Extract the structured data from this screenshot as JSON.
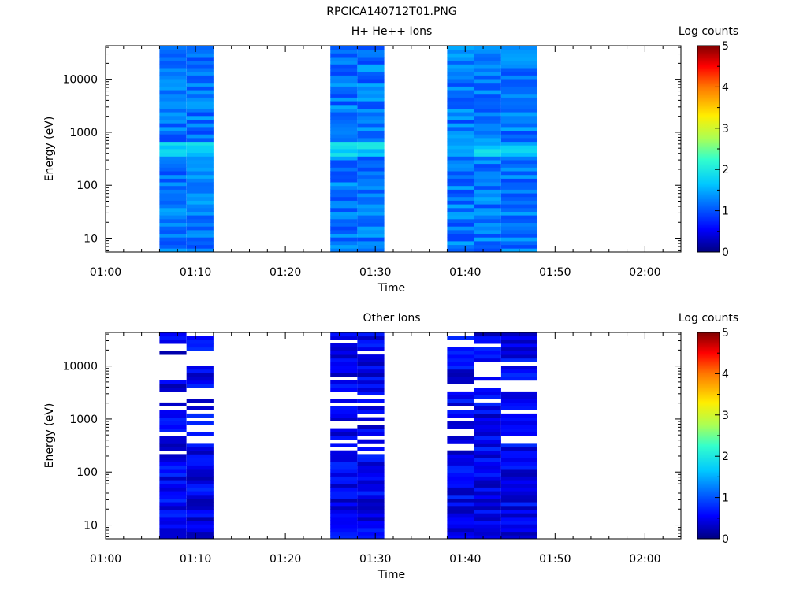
{
  "figure_title": "RPCICA140712T01.PNG",
  "chart_data": [
    {
      "type": "heatmap",
      "title": "H+ He++ Ions",
      "xlabel": "Time",
      "ylabel": "Energy (eV)",
      "x_ticks": [
        "01:00",
        "01:10",
        "01:20",
        "01:30",
        "01:40",
        "01:50",
        "02:00"
      ],
      "xlim": [
        "01:00",
        "02:04"
      ],
      "y_scale": "log",
      "ylim": [
        5.5,
        43000
      ],
      "y_ticks": [
        "10",
        "100",
        "1000",
        "10000"
      ],
      "colorbar": {
        "label": "Log counts",
        "range": [
          0,
          5
        ],
        "ticks": [
          "0",
          "1",
          "2",
          "3",
          "4",
          "5"
        ],
        "colormap": "rainbow"
      },
      "time_columns": [
        {
          "start": "01:06",
          "end": "01:09",
          "seed": 11
        },
        {
          "start": "01:09",
          "end": "01:12",
          "seed": 12
        },
        {
          "start": "01:25",
          "end": "01:28",
          "seed": 13
        },
        {
          "start": "01:28",
          "end": "01:31",
          "seed": 14
        },
        {
          "start": "01:38",
          "end": "01:41",
          "seed": 15
        },
        {
          "start": "01:41",
          "end": "01:44",
          "seed": 16
        },
        {
          "start": "01:44",
          "end": "01:48",
          "seed": 17
        }
      ],
      "typical_log_counts": [
        0.9,
        1.5
      ]
    },
    {
      "type": "heatmap",
      "title": "Other Ions",
      "xlabel": "Time",
      "ylabel": "Energy (eV)",
      "x_ticks": [
        "01:00",
        "01:10",
        "01:20",
        "01:30",
        "01:40",
        "01:50",
        "02:00"
      ],
      "xlim": [
        "01:00",
        "02:04"
      ],
      "y_scale": "log",
      "ylim": [
        5.5,
        43000
      ],
      "y_ticks": [
        "10",
        "100",
        "1000",
        "10000"
      ],
      "colorbar": {
        "label": "Log counts",
        "range": [
          0,
          5
        ],
        "ticks": [
          "0",
          "1",
          "2",
          "3",
          "4",
          "5"
        ],
        "colormap": "rainbow"
      },
      "time_columns": [
        {
          "start": "01:06",
          "end": "01:09",
          "seed": 21
        },
        {
          "start": "01:09",
          "end": "01:12",
          "seed": 22
        },
        {
          "start": "01:25",
          "end": "01:28",
          "seed": 23
        },
        {
          "start": "01:28",
          "end": "01:31",
          "seed": 24
        },
        {
          "start": "01:38",
          "end": "01:41",
          "seed": 25
        },
        {
          "start": "01:41",
          "end": "01:44",
          "seed": 26
        },
        {
          "start": "01:44",
          "end": "01:48",
          "seed": 27
        }
      ],
      "typical_log_counts": [
        0.2,
        0.8
      ]
    }
  ]
}
